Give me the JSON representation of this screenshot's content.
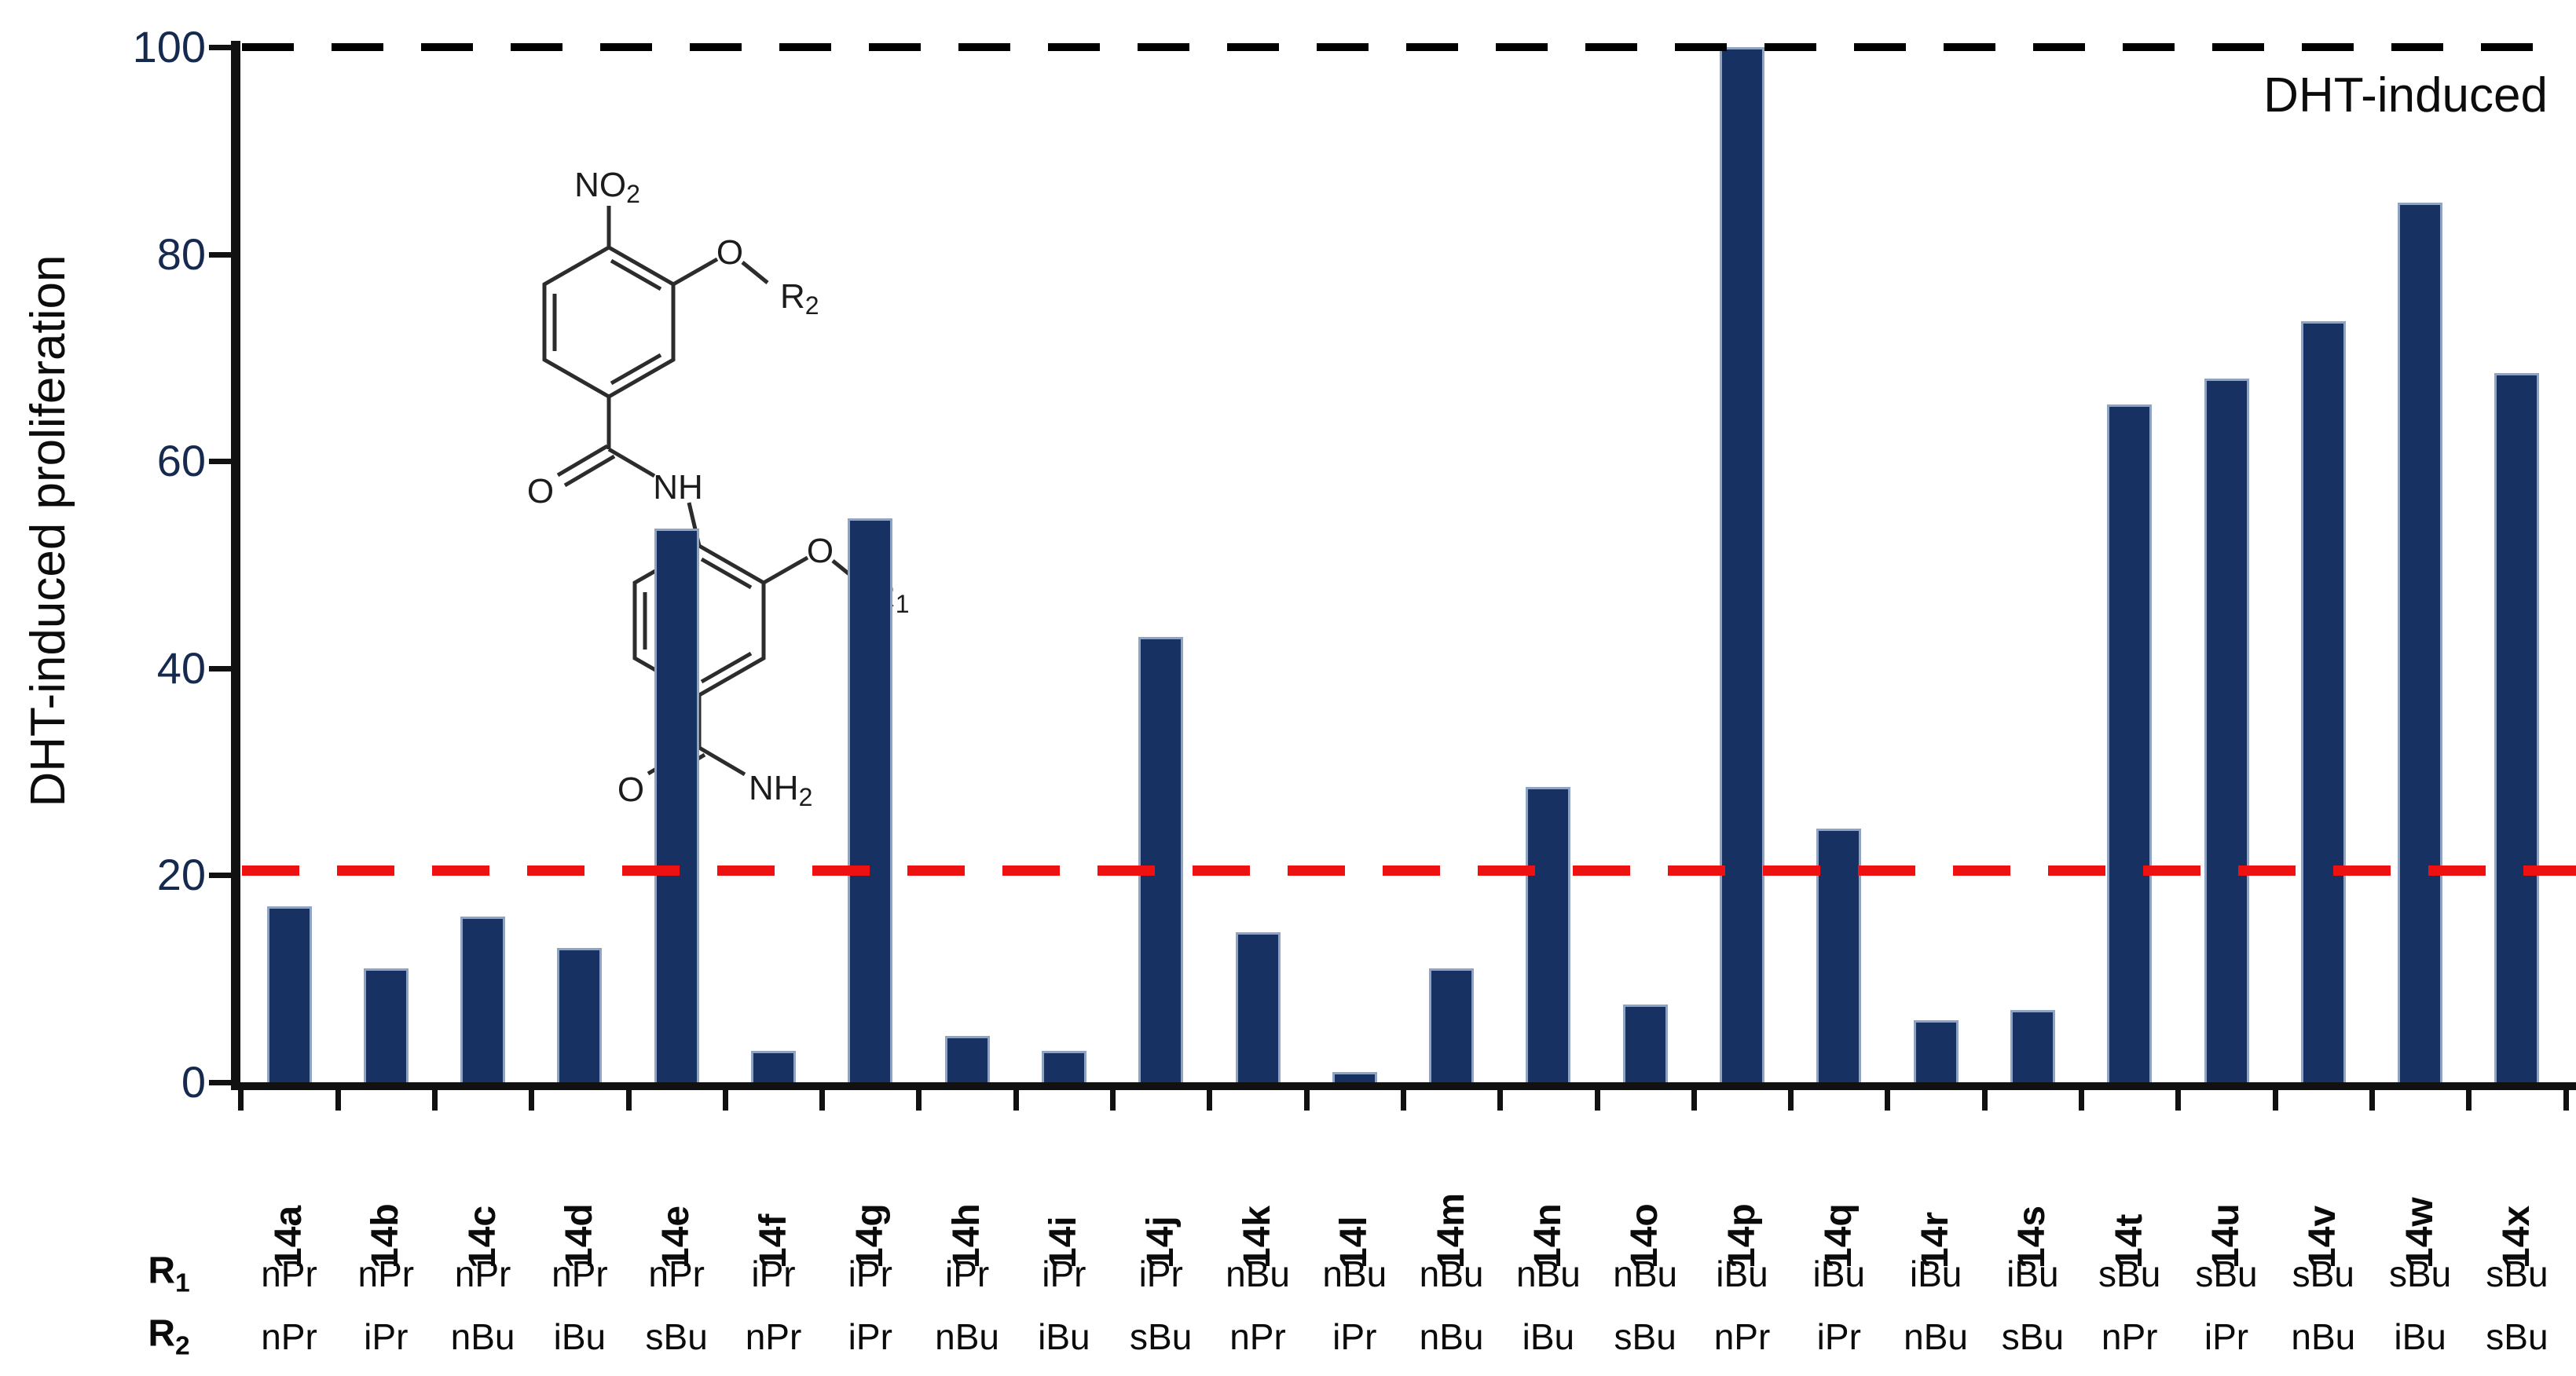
{
  "annotation": {
    "dht_line_label": "DHT-induced"
  },
  "y_axis": {
    "label": "DHT-induced proliferation"
  },
  "row_headers": {
    "r1_main": "R",
    "r1_sub": "1",
    "r2_main": "R",
    "r2_sub": "2"
  },
  "molecule": {
    "no2_main": "NO",
    "no2_sub": "2",
    "o_top": "O",
    "r2_main": "R",
    "r2_sub": "2",
    "carbonyl_o": "O",
    "nh": "NH",
    "o_mid": "O",
    "r1_main": "R",
    "r1_sub": "1",
    "amide_o": "O",
    "nh2_main": "NH",
    "nh2_sub": "2"
  },
  "colors": {
    "bar_fill": "#173162",
    "bar_border": "#8fa4c5",
    "red_dashed_line": "#ee1111",
    "black_dashed_line": "#000000",
    "axis": "#111111",
    "tick_label": "#152a4e"
  },
  "chart_data": {
    "type": "bar",
    "title": "",
    "xlabel": "",
    "ylabel": "DHT-induced proliferation",
    "ylim": [
      0,
      100
    ],
    "yticks": [
      0,
      20,
      40,
      60,
      80,
      100
    ],
    "grid": false,
    "legend_position": "none",
    "categories": [
      "14a",
      "14b",
      "14c",
      "14d",
      "14e",
      "14f",
      "14g",
      "14h",
      "14i",
      "14j",
      "14k",
      "14l",
      "14m",
      "14n",
      "14o",
      "14p",
      "14q",
      "14r",
      "14s",
      "14t",
      "14u",
      "14v",
      "14w",
      "14x"
    ],
    "values": [
      17,
      11,
      16,
      13,
      53.5,
      3,
      54.5,
      4.5,
      3,
      43,
      14.5,
      1,
      11,
      28.5,
      7.5,
      100,
      24.5,
      6,
      7,
      65.5,
      68,
      73.5,
      85,
      68.5
    ],
    "r1_row": [
      "nPr",
      "nPr",
      "nPr",
      "nPr",
      "nPr",
      "iPr",
      "iPr",
      "iPr",
      "iPr",
      "iPr",
      "nBu",
      "nBu",
      "nBu",
      "nBu",
      "nBu",
      "iBu",
      "iBu",
      "iBu",
      "iBu",
      "sBu",
      "sBu",
      "sBu",
      "sBu",
      "sBu"
    ],
    "r2_row": [
      "nPr",
      "iPr",
      "nBu",
      "iBu",
      "sBu",
      "nPr",
      "iPr",
      "nBu",
      "iBu",
      "sBu",
      "nPr",
      "iPr",
      "nBu",
      "iBu",
      "sBu",
      "nPr",
      "iPr",
      "nBu",
      "sBu",
      "nPr",
      "iPr",
      "nBu",
      "iBu",
      "sBu"
    ],
    "reference_lines": [
      {
        "value": 100,
        "label": "DHT-induced",
        "color": "#000000",
        "style": "dashed"
      },
      {
        "value": 20.5,
        "label": "",
        "color": "#ee1111",
        "style": "dashed"
      }
    ]
  }
}
